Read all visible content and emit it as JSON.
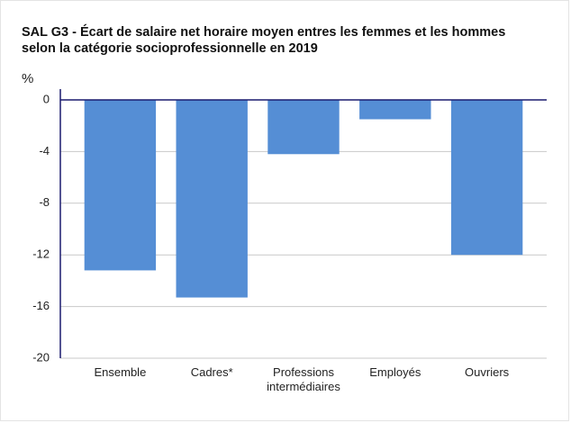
{
  "chart_data": {
    "type": "bar",
    "title": [
      "SAL G3 - Écart de salaire net horaire moyen entres les femmes et les hommes",
      "selon la catégorie socioprofessionnelle en 2019"
    ],
    "y_label": "%",
    "categories": [
      "Ensemble",
      "Cadres*",
      "Professions intermédiaires",
      "Employés",
      "Ouvriers"
    ],
    "values": [
      -13.2,
      -15.3,
      -4.2,
      -1.5,
      -12.0
    ],
    "color": "#558ed5",
    "ylim": [
      -20,
      0
    ],
    "yticks": [
      0,
      -4,
      -8,
      -12,
      -16,
      -20
    ],
    "grid": true
  }
}
